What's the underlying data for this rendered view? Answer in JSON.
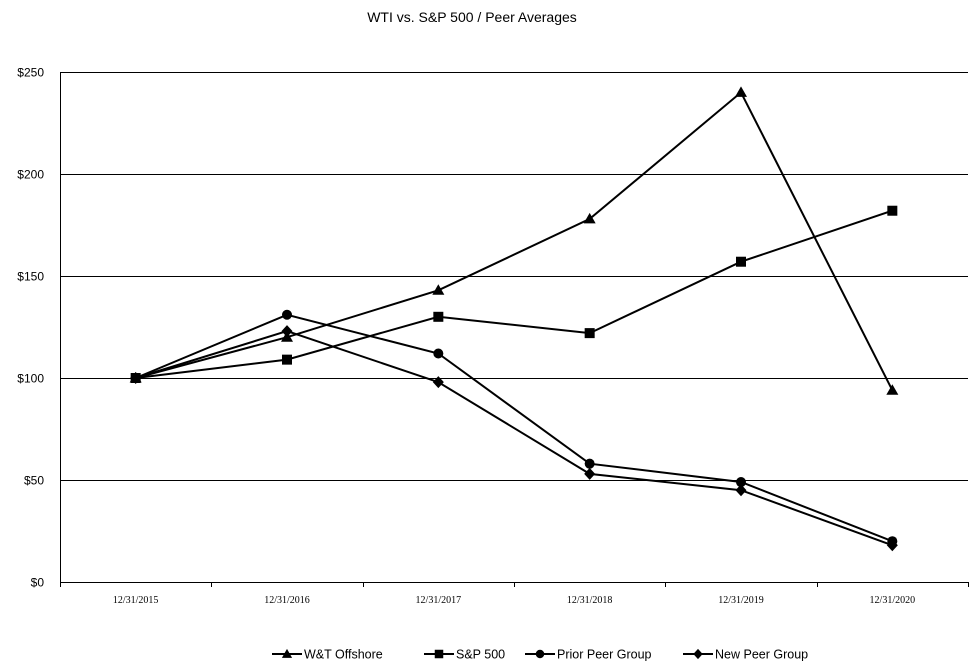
{
  "chart_data": {
    "type": "line",
    "title": "WTI vs. S&P 500 / Peer Averages",
    "xlabel": "",
    "ylabel": "",
    "categories": [
      "12/31/2015",
      "12/31/2016",
      "12/31/2017",
      "12/31/2018",
      "12/31/2019",
      "12/31/2020"
    ],
    "ylim": [
      0,
      250
    ],
    "yticks": [
      0,
      50,
      100,
      150,
      200,
      250
    ],
    "ytick_labels": [
      "$0",
      "$50",
      "$100",
      "$150",
      "$200",
      "$250"
    ],
    "grid": "horizontal",
    "legend_position": "bottom",
    "series": [
      {
        "name": "W&T Offshore",
        "marker": "triangle",
        "values": [
          100,
          120,
          143,
          178,
          240,
          94
        ]
      },
      {
        "name": "S&P 500",
        "marker": "square",
        "values": [
          100,
          109,
          130,
          122,
          157,
          182
        ]
      },
      {
        "name": "Prior Peer Group",
        "marker": "circle",
        "values": [
          100,
          131,
          112,
          58,
          49,
          20
        ]
      },
      {
        "name": "New Peer Group",
        "marker": "diamond",
        "values": [
          100,
          123,
          98,
          53,
          45,
          18
        ]
      }
    ]
  }
}
